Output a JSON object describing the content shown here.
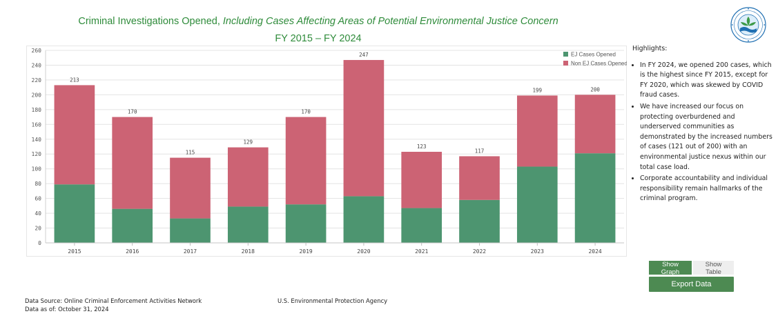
{
  "header": {
    "title_main": "Criminal Investigations Opened, ",
    "title_italic": "Including Cases Affecting Areas of Potential Environmental Justice Concern",
    "subtitle": "FY 2015 – FY 2024"
  },
  "colors": {
    "ej": "#4d9570",
    "non_ej": "#cc6374",
    "title": "#2e8b3a",
    "button": "#4d8a52"
  },
  "logo": {
    "icon": "epa-seal-icon"
  },
  "chart_data": {
    "type": "bar",
    "stacked": true,
    "categories": [
      "2015",
      "2016",
      "2017",
      "2018",
      "2019",
      "2020",
      "2021",
      "2022",
      "2023",
      "2024"
    ],
    "series": [
      {
        "name": "EJ Cases Opened",
        "values": [
          79,
          46,
          33,
          49,
          52,
          63,
          47,
          58,
          103,
          121
        ]
      },
      {
        "name": "Non EJ Cases Opened",
        "values": [
          134,
          124,
          82,
          80,
          118,
          184,
          76,
          59,
          96,
          79
        ]
      }
    ],
    "totals": [
      213,
      170,
      115,
      129,
      170,
      247,
      123,
      117,
      199,
      200
    ],
    "ylim": [
      0,
      260
    ],
    "yticks": [
      0,
      20,
      40,
      60,
      80,
      100,
      120,
      140,
      160,
      180,
      200,
      220,
      240,
      260
    ],
    "grid": true,
    "legend_position": "top-right"
  },
  "highlights": {
    "title": "Highlights:",
    "items": [
      "In FY 2024, we opened 200 cases, which is the highest since FY 2015, except for FY 2020, which was skewed by COVID fraud cases.",
      "We have increased our focus on protecting overburdened and underserved communities as demonstrated by the increased numbers of cases (121 out of 200) with an environmental justice nexus within our total case load.",
      "Corporate accountability and individual responsibility remain hallmarks of the criminal program."
    ]
  },
  "controls": {
    "show_graph": "Show Graph",
    "show_table": "Show Table",
    "export": "Export Data"
  },
  "footer": {
    "source": "Data Source: Online Criminal Enforcement Activities Network",
    "date": "Data as of: October 31, 2024",
    "agency": "U.S. Environmental Protection Agency"
  }
}
